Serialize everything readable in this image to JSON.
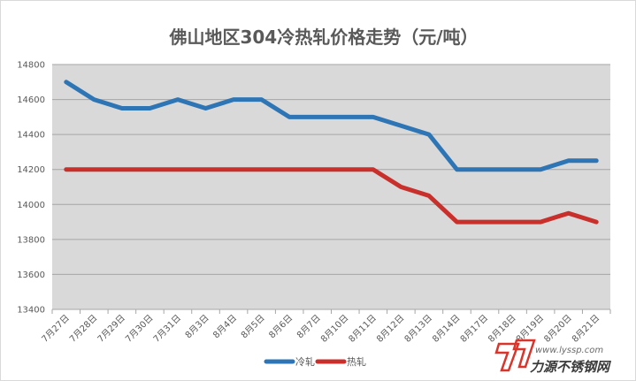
{
  "chart_data": {
    "type": "line",
    "title": "佛山地区304冷热轧价格走势（元/吨）",
    "categories": [
      "7月27日",
      "7月28日",
      "7月29日",
      "7月30日",
      "7月31日",
      "8月3日",
      "8月4日",
      "8月5日",
      "8月6日",
      "8月7日",
      "8月10日",
      "8月11日",
      "8月12日",
      "8月13日",
      "8月14日",
      "8月17日",
      "8月18日",
      "8月19日",
      "8月20日",
      "8月21日"
    ],
    "series": [
      {
        "name": "冷轧",
        "color": "#2e75b6",
        "values": [
          14700,
          14600,
          14550,
          14550,
          14600,
          14550,
          14600,
          14600,
          14500,
          14500,
          14500,
          14500,
          14450,
          14400,
          14200,
          14200,
          14200,
          14200,
          14250,
          14250
        ]
      },
      {
        "name": "热轧",
        "color": "#c9302c",
        "values": [
          14200,
          14200,
          14200,
          14200,
          14200,
          14200,
          14200,
          14200,
          14200,
          14200,
          14200,
          14200,
          14100,
          14050,
          13900,
          13900,
          13900,
          13900,
          13950,
          13900
        ]
      }
    ],
    "ylim": [
      13400,
      14800
    ],
    "yticks": [
      13400,
      13600,
      13800,
      14000,
      14200,
      14400,
      14600,
      14800
    ],
    "grid": true,
    "plot_background": "#d9d9d9",
    "legend_position": "bottom"
  },
  "watermark": {
    "brand": "力源不锈钢网",
    "url": "www.lyssp.com",
    "color": "#d9352b"
  }
}
